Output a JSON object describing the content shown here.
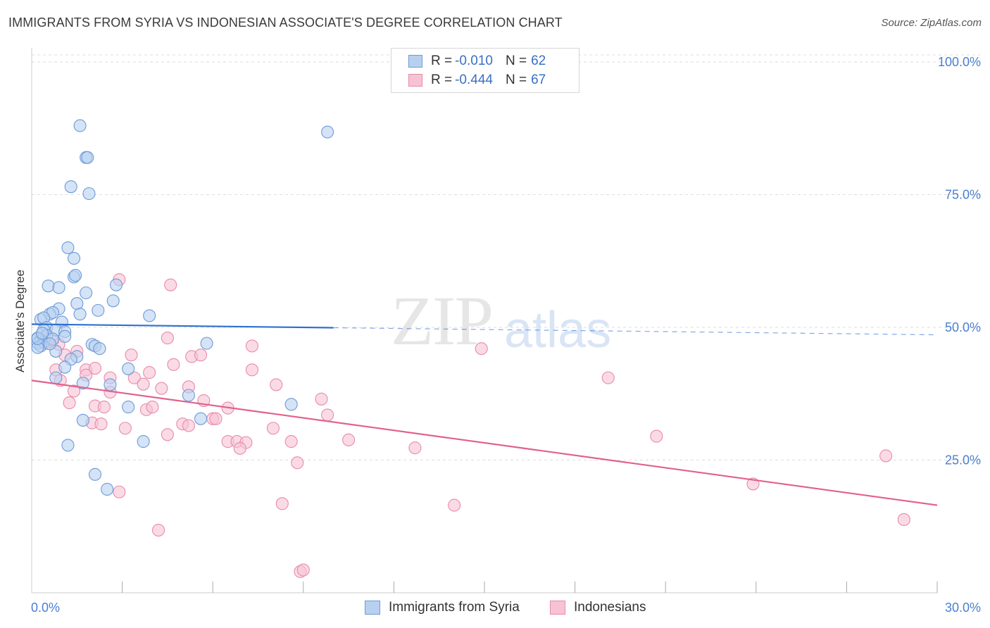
{
  "title": "IMMIGRANTS FROM SYRIA VS INDONESIAN ASSOCIATE'S DEGREE CORRELATION CHART",
  "source": "Source: ZipAtlas.com",
  "watermark": {
    "zip": "ZIP",
    "atlas": "atlas"
  },
  "legend_top": [
    {
      "r_label": "R =",
      "r_value": "-0.010",
      "n_label": "N =",
      "n_value": "62"
    },
    {
      "r_label": "R =",
      "r_value": "-0.444",
      "n_label": "N =",
      "n_value": "67"
    }
  ],
  "legend_bottom": [
    "Immigrants from Syria",
    "Indonesians"
  ],
  "colors": {
    "blue_fill": "#b8d0f0",
    "blue_stroke": "#6e9ad8",
    "blue_line": "#2f6fcf",
    "pink_fill": "#f7c3d3",
    "pink_stroke": "#e98aa8",
    "pink_line": "#e2608c",
    "grid": "#dddddd",
    "tick_text": "#4a7fd0"
  },
  "chart_data": {
    "type": "scatter",
    "title": "IMMIGRANTS FROM SYRIA VS INDONESIAN ASSOCIATE'S DEGREE CORRELATION CHART",
    "xlabel": "",
    "ylabel": "Associate's Degree",
    "xlim": [
      0,
      30
    ],
    "ylim": [
      0,
      103
    ],
    "x_tick_labels": [
      "0.0%",
      "30.0%"
    ],
    "y_ticks": [
      25,
      50,
      75,
      100
    ],
    "y_tick_labels": [
      "25.0%",
      "50.0%",
      "75.0%",
      "100.0%"
    ],
    "series": [
      {
        "name": "Immigrants from Syria",
        "r": -0.01,
        "n": 62,
        "trend": {
          "x0": 0,
          "y0": 50.6,
          "x1": 30,
          "y1": 48.6,
          "solid_until_x": 10
        },
        "points": [
          [
            1.6,
            88
          ],
          [
            1.8,
            82
          ],
          [
            1.85,
            82
          ],
          [
            1.3,
            76.5
          ],
          [
            1.9,
            75.2
          ],
          [
            9.8,
            86.8
          ],
          [
            1.2,
            65
          ],
          [
            1.4,
            63
          ],
          [
            1.4,
            59.5
          ],
          [
            1.45,
            59.8
          ],
          [
            0.55,
            57.8
          ],
          [
            0.9,
            57.5
          ],
          [
            1.8,
            56.5
          ],
          [
            2.8,
            58
          ],
          [
            1.5,
            54.5
          ],
          [
            2.7,
            55
          ],
          [
            0.9,
            53.5
          ],
          [
            2.2,
            53.2
          ],
          [
            0.6,
            52.5
          ],
          [
            0.7,
            52.8
          ],
          [
            1.6,
            52.5
          ],
          [
            3.9,
            52.2
          ],
          [
            0.3,
            51.5
          ],
          [
            0.4,
            51.8
          ],
          [
            1.0,
            51
          ],
          [
            0.5,
            50
          ],
          [
            0.4,
            49.5
          ],
          [
            0.8,
            49.5
          ],
          [
            1.1,
            49.2
          ],
          [
            0.5,
            48.5
          ],
          [
            1.1,
            48.3
          ],
          [
            0.2,
            48
          ],
          [
            0.3,
            47.5
          ],
          [
            0.2,
            47
          ],
          [
            0.4,
            47.2
          ],
          [
            0.7,
            47.8
          ],
          [
            2.0,
            46.8
          ],
          [
            2.1,
            46.5
          ],
          [
            2.25,
            46
          ],
          [
            5.8,
            47
          ],
          [
            0.3,
            46.5
          ],
          [
            0.2,
            46.2
          ],
          [
            0.8,
            45.5
          ],
          [
            1.5,
            44.5
          ],
          [
            1.3,
            44
          ],
          [
            1.1,
            42.5
          ],
          [
            3.2,
            42.2
          ],
          [
            0.8,
            40.5
          ],
          [
            1.7,
            39.5
          ],
          [
            2.6,
            39.2
          ],
          [
            5.2,
            37.2
          ],
          [
            3.2,
            35
          ],
          [
            8.6,
            35.5
          ],
          [
            1.7,
            32.5
          ],
          [
            5.6,
            32.8
          ],
          [
            3.7,
            28.5
          ],
          [
            1.2,
            27.8
          ],
          [
            2.1,
            22.3
          ],
          [
            2.5,
            19.5
          ],
          [
            0.2,
            47.9
          ],
          [
            0.35,
            48.9
          ],
          [
            0.6,
            46.9
          ]
        ]
      },
      {
        "name": "Indonesians",
        "r": -0.444,
        "n": 67,
        "trend": {
          "x0": 0,
          "y0": 40,
          "x1": 30,
          "y1": 16.5
        },
        "points": [
          [
            2.9,
            59
          ],
          [
            4.6,
            58
          ],
          [
            4.5,
            48
          ],
          [
            0.45,
            47
          ],
          [
            0.7,
            47.5
          ],
          [
            1.5,
            45.5
          ],
          [
            1.1,
            44.8
          ],
          [
            3.3,
            44.8
          ],
          [
            5.3,
            44.5
          ],
          [
            5.6,
            44.8
          ],
          [
            4.7,
            43
          ],
          [
            7.3,
            46.5
          ],
          [
            14.9,
            46
          ],
          [
            7.3,
            42
          ],
          [
            0.8,
            42
          ],
          [
            1.8,
            42
          ],
          [
            1.8,
            41
          ],
          [
            2.6,
            40.5
          ],
          [
            3.4,
            40.5
          ],
          [
            3.9,
            41.5
          ],
          [
            0.95,
            40
          ],
          [
            3.7,
            39.3
          ],
          [
            4.3,
            38.5
          ],
          [
            5.2,
            38.8
          ],
          [
            8.1,
            39.2
          ],
          [
            19.1,
            40.5
          ],
          [
            1.4,
            38
          ],
          [
            2.6,
            37.8
          ],
          [
            1.25,
            35.8
          ],
          [
            2.1,
            35.2
          ],
          [
            2.4,
            35
          ],
          [
            3.8,
            34.5
          ],
          [
            4.0,
            35
          ],
          [
            5.7,
            36.2
          ],
          [
            9.6,
            36.5
          ],
          [
            6.5,
            34.8
          ],
          [
            9.8,
            33.5
          ],
          [
            2.0,
            32
          ],
          [
            2.3,
            31.8
          ],
          [
            3.1,
            31
          ],
          [
            5.0,
            31.8
          ],
          [
            5.2,
            31.5
          ],
          [
            6.0,
            32.8
          ],
          [
            6.1,
            32.8
          ],
          [
            8.0,
            31
          ],
          [
            4.5,
            29.8
          ],
          [
            6.5,
            28.5
          ],
          [
            6.8,
            28.5
          ],
          [
            7.1,
            28.3
          ],
          [
            8.6,
            28.5
          ],
          [
            10.5,
            28.8
          ],
          [
            20.7,
            29.5
          ],
          [
            6.9,
            27.2
          ],
          [
            12.7,
            27.3
          ],
          [
            8.8,
            24.5
          ],
          [
            28.3,
            25.8
          ],
          [
            23.9,
            20.5
          ],
          [
            2.9,
            19
          ],
          [
            8.3,
            16.8
          ],
          [
            14.0,
            16.5
          ],
          [
            4.2,
            11.8
          ],
          [
            28.9,
            13.8
          ],
          [
            8.9,
            4
          ],
          [
            9.0,
            4.3
          ],
          [
            0.3,
            47.8
          ],
          [
            0.9,
            46.8
          ],
          [
            2.1,
            42.3
          ]
        ]
      }
    ]
  }
}
